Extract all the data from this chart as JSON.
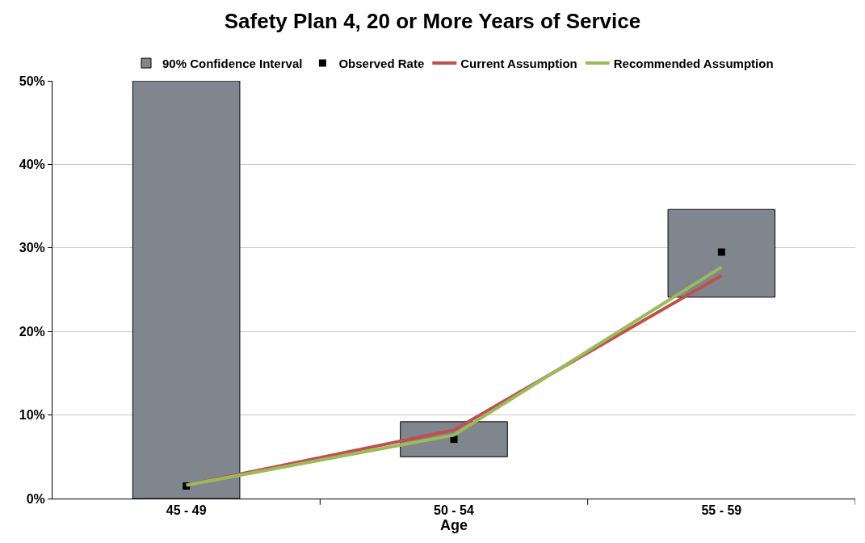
{
  "chart_data": {
    "type": "bar",
    "title": "Safety Plan 4, 20 or More Years of Service",
    "xlabel": "Age",
    "categories": [
      "45 - 49",
      "50 - 54",
      "55 - 59"
    ],
    "ylim": [
      0,
      50
    ],
    "yticks": [
      {
        "value": 0,
        "label": "0%"
      },
      {
        "value": 10,
        "label": "10%"
      },
      {
        "value": 20,
        "label": "20%"
      },
      {
        "value": 30,
        "label": "30%"
      },
      {
        "value": 40,
        "label": "40%"
      },
      {
        "value": 50,
        "label": "50%"
      }
    ],
    "grid": "y",
    "legend": "top",
    "series": [
      {
        "name": "90% Confidence Interval",
        "color": "#7f868d",
        "base": [
          0,
          5.0,
          24.1
        ],
        "values": [
          50,
          4.2,
          10.5
        ]
      },
      {
        "name": "Observed Rate",
        "type": "scatter",
        "marker": "square",
        "color": "#000000",
        "values": [
          1.5,
          7.1,
          29.5
        ]
      },
      {
        "name": "Current Assumption",
        "type": "line",
        "color": "#c0504d",
        "values": [
          1.6,
          8.2,
          26.7
        ]
      },
      {
        "name": "Recommended Assumption",
        "type": "line",
        "color": "#9bbb59",
        "values": [
          1.6,
          7.6,
          27.7
        ]
      }
    ]
  }
}
